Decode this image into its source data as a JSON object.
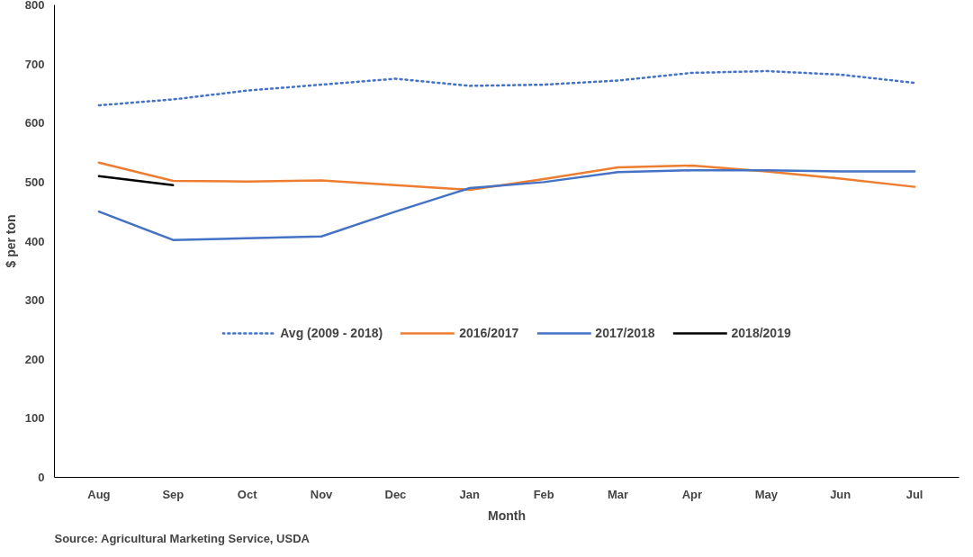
{
  "chart_data": {
    "type": "line",
    "xlabel": "Month",
    "ylabel": "$ per ton",
    "categories": [
      "Aug",
      "Sep",
      "Oct",
      "Nov",
      "Dec",
      "Jan",
      "Feb",
      "Mar",
      "Apr",
      "May",
      "Jun",
      "Jul"
    ],
    "ylim": [
      0,
      800
    ],
    "yticks": [
      0,
      100,
      200,
      300,
      400,
      500,
      600,
      700,
      800
    ],
    "grid": false,
    "legend": "bottom",
    "series": [
      {
        "name": "Avg (2009 - 2018)",
        "color": "#4472c4",
        "line_style": "dotted",
        "values": [
          630,
          640,
          655,
          665,
          675,
          663,
          665,
          672,
          685,
          688,
          682,
          668
        ]
      },
      {
        "name": "2016/2017",
        "color": "#ed7d31",
        "values": [
          533,
          502,
          501,
          503,
          495,
          487,
          505,
          525,
          528,
          518,
          506,
          492
        ]
      },
      {
        "name": "2017/2018",
        "color": "#4472c4",
        "values": [
          450,
          402,
          405,
          408,
          450,
          490,
          500,
          517,
          520,
          520,
          518,
          518
        ]
      },
      {
        "name": "2018/2019",
        "color": "#000000",
        "values": [
          510,
          495,
          null,
          null,
          null,
          null,
          null,
          null,
          null,
          null,
          null,
          null
        ]
      }
    ],
    "annotations": [
      "Source:  Agricultural Marketing Service, USDA"
    ]
  }
}
